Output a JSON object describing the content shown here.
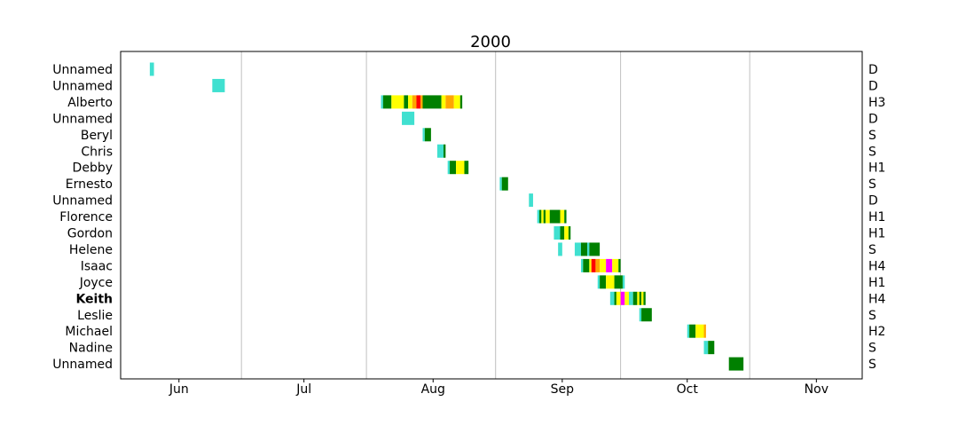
{
  "chart_data": {
    "type": "timeline",
    "title": "2000",
    "x_axis": {
      "unit": "day of year",
      "range": [
        146,
        324
      ],
      "ticks": [
        {
          "label": "Jun",
          "day": 160
        },
        {
          "label": "Jul",
          "day": 190
        },
        {
          "label": "Aug",
          "day": 221
        },
        {
          "label": "Sep",
          "day": 252
        },
        {
          "label": "Oct",
          "day": 282
        },
        {
          "label": "Nov",
          "day": 313
        }
      ],
      "month_boundaries": [
        175,
        205,
        236,
        266,
        297
      ]
    },
    "colors": {
      "TD": "#40e0d0",
      "TS": "#008000",
      "C1": "#ffff00",
      "C2": "#ffa500",
      "C3": "#ff0000",
      "C4": "#ff00ff",
      "frame": "#000000",
      "grid": "#c0c0c0"
    },
    "storms": [
      {
        "name": "Unnamed",
        "bold": false,
        "category": "D",
        "segments": [
          [
            153.0,
            154.0,
            "TD"
          ]
        ]
      },
      {
        "name": "Unnamed",
        "bold": false,
        "category": "D",
        "segments": [
          [
            168.0,
            171.0,
            "TD"
          ]
        ]
      },
      {
        "name": "Alberto",
        "bold": false,
        "category": "H3",
        "segments": [
          [
            208.5,
            209.0,
            "TD"
          ],
          [
            209.0,
            211.0,
            "TS"
          ],
          [
            211.0,
            214.0,
            "C1"
          ],
          [
            214.0,
            215.0,
            "TS"
          ],
          [
            215.0,
            216.0,
            "C1"
          ],
          [
            216.0,
            217.0,
            "C2"
          ],
          [
            217.0,
            218.0,
            "C3"
          ],
          [
            218.0,
            218.5,
            "C2"
          ],
          [
            218.5,
            223.0,
            "TS"
          ],
          [
            223.0,
            224.0,
            "C1"
          ],
          [
            224.0,
            226.0,
            "C2"
          ],
          [
            226.0,
            227.5,
            "C1"
          ],
          [
            227.5,
            228.0,
            "TS"
          ]
        ]
      },
      {
        "name": "Unnamed",
        "bold": false,
        "category": "D",
        "segments": [
          [
            213.5,
            216.5,
            "TD"
          ]
        ]
      },
      {
        "name": "Beryl",
        "bold": false,
        "category": "S",
        "segments": [
          [
            218.5,
            219.0,
            "TD"
          ],
          [
            219.0,
            220.5,
            "TS"
          ]
        ]
      },
      {
        "name": "Chris",
        "bold": false,
        "category": "S",
        "segments": [
          [
            222.0,
            223.5,
            "TD"
          ],
          [
            223.5,
            224.0,
            "TS"
          ]
        ]
      },
      {
        "name": "Debby",
        "bold": false,
        "category": "H1",
        "segments": [
          [
            224.5,
            225.0,
            "TD"
          ],
          [
            225.0,
            226.5,
            "TS"
          ],
          [
            226.5,
            228.5,
            "C1"
          ],
          [
            228.5,
            229.5,
            "TS"
          ]
        ]
      },
      {
        "name": "Ernesto",
        "bold": false,
        "category": "S",
        "segments": [
          [
            237.0,
            237.5,
            "TD"
          ],
          [
            237.5,
            239.0,
            "TS"
          ]
        ]
      },
      {
        "name": "Unnamed",
        "bold": false,
        "category": "D",
        "segments": [
          [
            244.0,
            245.0,
            "TD"
          ]
        ]
      },
      {
        "name": "Florence",
        "bold": false,
        "category": "H1",
        "segments": [
          [
            246.0,
            246.5,
            "TD"
          ],
          [
            246.5,
            247.0,
            "TS"
          ],
          [
            247.0,
            247.5,
            "C1"
          ],
          [
            247.5,
            248.0,
            "TS"
          ],
          [
            248.0,
            249.0,
            "C1"
          ],
          [
            249.0,
            251.5,
            "TS"
          ],
          [
            251.5,
            252.5,
            "C1"
          ],
          [
            252.5,
            253.0,
            "TS"
          ]
        ]
      },
      {
        "name": "Gordon",
        "bold": false,
        "category": "H1",
        "segments": [
          [
            250.0,
            251.5,
            "TD"
          ],
          [
            251.5,
            252.5,
            "TS"
          ],
          [
            252.5,
            253.5,
            "C1"
          ],
          [
            253.5,
            254.0,
            "TS"
          ]
        ]
      },
      {
        "name": "Helene",
        "bold": false,
        "category": "S",
        "segments": [
          [
            251.0,
            252.0,
            "TD"
          ],
          [
            255.0,
            256.5,
            "TD"
          ],
          [
            256.5,
            258.0,
            "TS"
          ],
          [
            258.0,
            258.5,
            "TD"
          ],
          [
            258.5,
            261.0,
            "TS"
          ]
        ]
      },
      {
        "name": "Isaac",
        "bold": false,
        "category": "H4",
        "segments": [
          [
            256.5,
            257.0,
            "TD"
          ],
          [
            257.0,
            258.5,
            "TS"
          ],
          [
            258.5,
            259.0,
            "C1"
          ],
          [
            259.0,
            260.0,
            "C3"
          ],
          [
            260.0,
            261.0,
            "C2"
          ],
          [
            261.0,
            262.5,
            "C1"
          ],
          [
            262.5,
            264.0,
            "C4"
          ],
          [
            264.0,
            265.5,
            "C1"
          ],
          [
            265.5,
            266.0,
            "TS"
          ]
        ]
      },
      {
        "name": "Joyce",
        "bold": false,
        "category": "H1",
        "segments": [
          [
            260.5,
            261.0,
            "TD"
          ],
          [
            261.0,
            262.5,
            "TS"
          ],
          [
            262.5,
            264.5,
            "C1"
          ],
          [
            264.5,
            266.5,
            "TS"
          ],
          [
            266.5,
            267.0,
            "TD"
          ]
        ]
      },
      {
        "name": "Keith",
        "bold": true,
        "category": "H4",
        "segments": [
          [
            263.5,
            264.5,
            "TD"
          ],
          [
            264.5,
            265.0,
            "TS"
          ],
          [
            265.0,
            266.0,
            "C1"
          ],
          [
            266.0,
            267.0,
            "C4"
          ],
          [
            267.0,
            268.0,
            "C1"
          ],
          [
            268.0,
            269.0,
            "TD"
          ],
          [
            269.0,
            270.0,
            "TS"
          ],
          [
            270.0,
            270.5,
            "C1"
          ],
          [
            270.5,
            271.0,
            "TS"
          ],
          [
            271.0,
            271.5,
            "C1"
          ],
          [
            271.5,
            272.0,
            "TS"
          ]
        ]
      },
      {
        "name": "Leslie",
        "bold": false,
        "category": "S",
        "segments": [
          [
            270.5,
            271.0,
            "TD"
          ],
          [
            271.0,
            273.5,
            "TS"
          ]
        ]
      },
      {
        "name": "Michael",
        "bold": false,
        "category": "H2",
        "segments": [
          [
            282.0,
            282.5,
            "TD"
          ],
          [
            282.5,
            284.0,
            "TS"
          ],
          [
            284.0,
            286.0,
            "C1"
          ],
          [
            286.0,
            286.5,
            "C2"
          ]
        ]
      },
      {
        "name": "Nadine",
        "bold": false,
        "category": "S",
        "segments": [
          [
            286.0,
            287.0,
            "TD"
          ],
          [
            287.0,
            288.5,
            "TS"
          ]
        ]
      },
      {
        "name": "Unnamed",
        "bold": false,
        "category": "S",
        "segments": [
          [
            292.0,
            295.5,
            "TS"
          ]
        ]
      }
    ]
  }
}
